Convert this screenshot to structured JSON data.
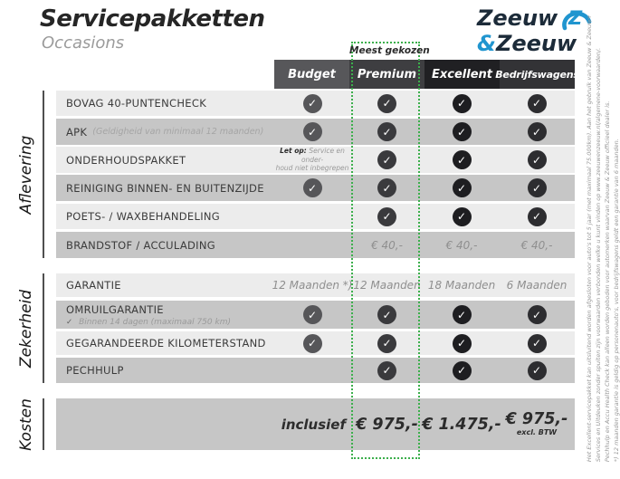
{
  "header": {
    "title": "Servicepakketten",
    "subtitle": "Occasions"
  },
  "logo": {
    "word1": "Zeeuw",
    "amp": "&",
    "word2": "Zeeuw",
    "navy": "#1c2b39",
    "blue": "#2095cf"
  },
  "badge": {
    "label": "Meest gekozen",
    "border_color": "#3caf4c"
  },
  "table": {
    "check_icon": "✓",
    "columns": [
      {
        "label": "Budget",
        "header_color": "#57575a",
        "check_color": "#565659"
      },
      {
        "label": "Premium",
        "header_color": "#3e3e41",
        "check_color": "#3a3a3d"
      },
      {
        "label": "Excellent",
        "header_color": "#202023",
        "check_color": "#1e1e21"
      },
      {
        "label": "Bedrijfswagens",
        "header_color": "#333336",
        "check_color": "#2d2d30"
      }
    ],
    "sections": [
      {
        "label": "Aflevering",
        "rows": [
          {
            "label": "BOVAG 40-PUNTENCHECK",
            "cells": [
              "✓",
              "✓",
              "✓",
              "✓"
            ]
          },
          {
            "label": "APK",
            "label_note": "(Geldigheid van minimaal 12 maanden)",
            "cells": [
              "✓",
              "✓",
              "✓",
              "✓"
            ]
          },
          {
            "label": "ONDERHOUDSPAKKET",
            "cells": [
              {
                "bold": "Let op:",
                "lines": [
                  "Service en onder-",
                  "houd niet inbegrepen"
                ]
              },
              "✓",
              "✓",
              "✓"
            ]
          },
          {
            "label": "REINIGING BINNEN- EN BUITENZIJDE",
            "cells": [
              "✓",
              "✓",
              "✓",
              "✓"
            ]
          },
          {
            "label": "POETS- / WAXBEHANDELING",
            "cells": [
              "",
              "✓",
              "✓",
              "✓"
            ]
          },
          {
            "label": "BRANDSTOF / ACCULADING",
            "cells": [
              "",
              "€ 40,-",
              "€ 40,-",
              "€ 40,-"
            ]
          }
        ]
      },
      {
        "label": "Zekerheid",
        "rows": [
          {
            "label": "GARANTIE",
            "cells": [
              "12 Maanden *)",
              "12 Maanden",
              "18 Maanden",
              "6 Maanden"
            ]
          },
          {
            "label": "OMRUILGARANTIE",
            "sub": "Binnen 14 dagen (maximaal 750 km)",
            "cells": [
              "✓",
              "✓",
              "✓",
              "✓"
            ]
          },
          {
            "label": "GEGARANDEERDE KILOMETERSTAND",
            "cells": [
              "✓",
              "✓",
              "✓",
              "✓"
            ]
          },
          {
            "label": "PECHHULP",
            "cells": [
              "",
              "✓",
              "✓",
              "✓"
            ]
          }
        ]
      }
    ]
  },
  "kosten": {
    "label": "Kosten",
    "inclusief": "inclusief",
    "values": [
      "€ 975,-",
      "€ 1.475,-",
      "€ 975,-"
    ],
    "btw_note": "excl. BTW"
  },
  "fine_print": [
    "Het Excellent-servicepakket kan uitsluitend worden afgesloten voor auto's tot 5 jaar (met maximaal 75.000km). Aan het gebruik van Zeeuw & Zeeuw+",
    "Services en Uitdeuken zonder spuiten zijn voorwaarden verbonden welke u kunt vinden op www.zeeuwenzeeuw.nl/algemene-voorwaarden/.",
    "Pechhulp en Accu Health Check kan alleen worden geboden voor automerken waarvan Zeeuw & Zeeuw officieel dealer is.",
    "*) 12 maanden garantie is geldig op personenauto's, voor bedrijfswagens geldt een garantie van 6 maanden."
  ]
}
